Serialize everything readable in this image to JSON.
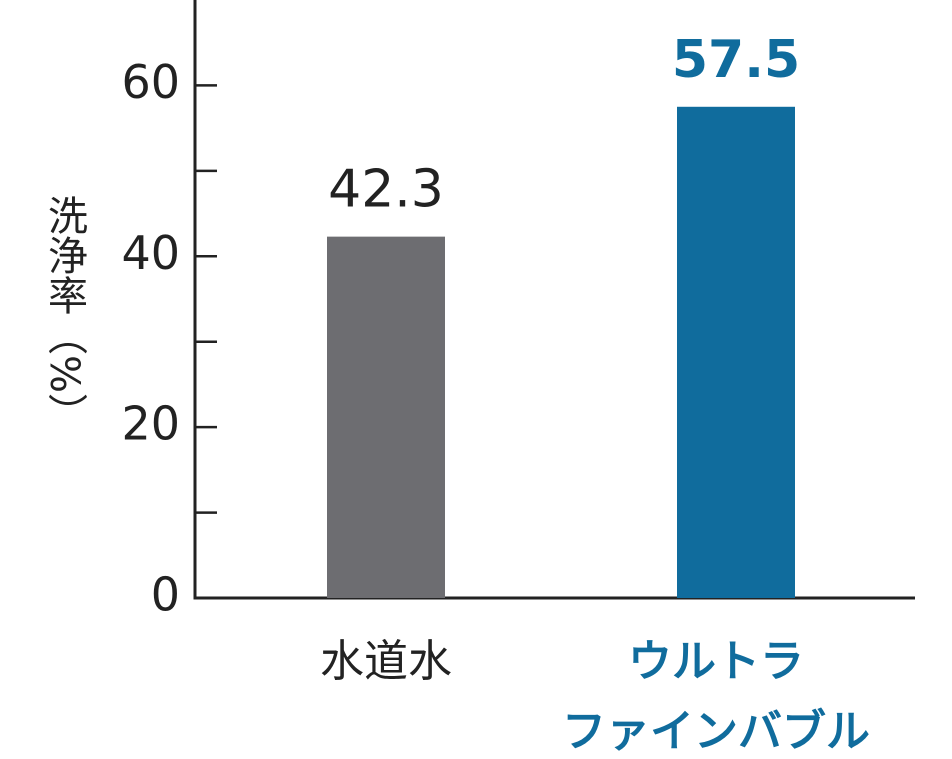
{
  "chart_data": {
    "type": "bar",
    "y_label": "洗浄率（%）",
    "categories": [
      [
        "水道水"
      ],
      [
        "ウルトラ",
        "ファインバブル"
      ]
    ],
    "values": [
      42.3,
      57.5
    ],
    "colors": [
      "#6d6d71",
      "#106c9d"
    ],
    "label_colors": [
      "#222222",
      "#106c9d"
    ],
    "ylim": [
      0,
      70
    ],
    "yticks": [
      0,
      20,
      40,
      60
    ],
    "minor_yticks": [
      10,
      30,
      50
    ]
  }
}
